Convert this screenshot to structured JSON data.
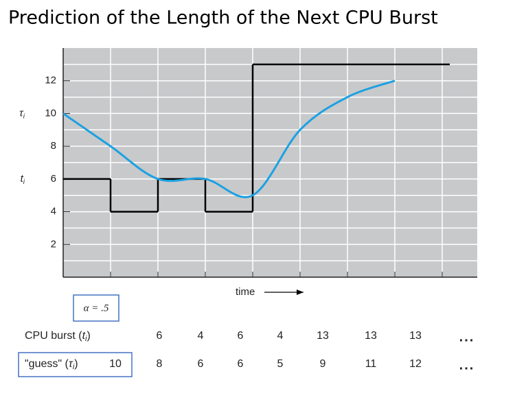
{
  "chart_data": {
    "type": "line",
    "title": "Prediction of the Length of the Next CPU Burst",
    "x_label": "time",
    "annotation": "α = .5",
    "ylim": [
      0,
      14
    ],
    "yticks": [
      2,
      4,
      6,
      8,
      10,
      12
    ],
    "grid": true,
    "ellipsis": "...",
    "series": [
      {
        "label_parts": [
          "CPU burst (",
          "t",
          "i",
          ")"
        ],
        "color": "#000000",
        "step": true,
        "values": [
          6,
          4,
          6,
          4,
          13,
          13,
          13
        ]
      },
      {
        "label_parts": [
          "\"guess\" (",
          "τ",
          "i",
          ")"
        ],
        "color": "#1ba1e2",
        "step": false,
        "values": [
          10,
          8,
          6,
          6,
          5,
          9,
          11,
          12
        ]
      }
    ]
  }
}
